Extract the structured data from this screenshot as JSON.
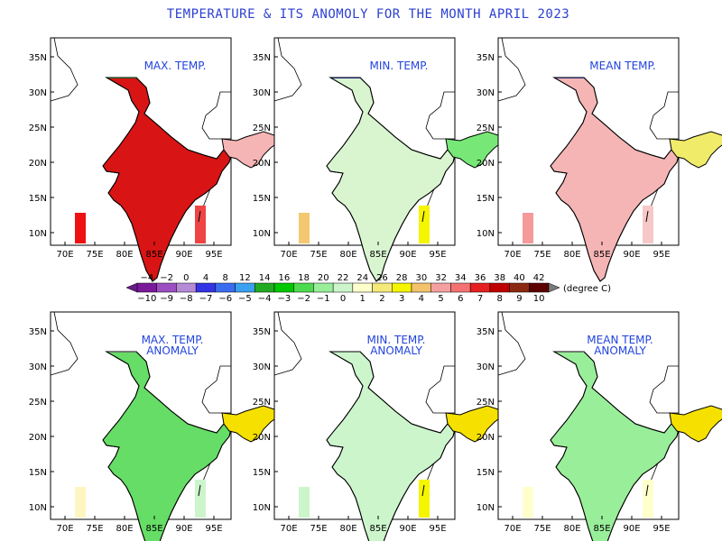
{
  "title": "TEMPERATURE & ITS   ANOMOLY FOR THE MONTH APRIL 2023",
  "panels": [
    {
      "label": "MAX. TEMP.",
      "label2": ""
    },
    {
      "label": "MIN. TEMP.",
      "label2": ""
    },
    {
      "label": "MEAN TEMP.",
      "label2": ""
    },
    {
      "label": "MAX. TEMP.",
      "label2": "ANOMALY"
    },
    {
      "label": "MIN. TEMP.",
      "label2": "ANOMALY"
    },
    {
      "label": "MEAN TEMP.",
      "label2": "ANOMALY"
    }
  ],
  "axes": {
    "lon_ticks": [
      "70E",
      "75E",
      "80E",
      "85E",
      "90E",
      "95E"
    ],
    "lat_ticks": [
      "35N",
      "30N",
      "25N",
      "20N",
      "15N",
      "10N"
    ]
  },
  "colorbar": {
    "top_values": [
      "−4",
      "−2",
      "0",
      "4",
      "8",
      "12",
      "14",
      "16",
      "18",
      "20",
      "22",
      "24",
      "26",
      "28",
      "30",
      "32",
      "34",
      "36",
      "38",
      "40",
      "42"
    ],
    "bottom_values": [
      "−10",
      "−9",
      "−8",
      "−7",
      "−6",
      "−5",
      "−4",
      "−3",
      "−2",
      "−1",
      "0",
      "1",
      "2",
      "3",
      "4",
      "5",
      "6",
      "7",
      "8",
      "9",
      "10"
    ],
    "unit": "(degree C)",
    "colors": [
      "#7a1a9a",
      "#9b4fc0",
      "#b58ad6",
      "#3333e6",
      "#3a6cf0",
      "#3aa0f0",
      "#22aa22",
      "#00c800",
      "#4ddb4d",
      "#99ee99",
      "#ccf5cc",
      "#ffffcc",
      "#f5e97a",
      "#f5f500",
      "#f4c26b",
      "#f5a0a0",
      "#f57272",
      "#e62020",
      "#c00000",
      "#8b2a10",
      "#5c0000"
    ]
  },
  "colors": {
    "title": "#2b3fd1",
    "panel_label": "#2244dd"
  }
}
